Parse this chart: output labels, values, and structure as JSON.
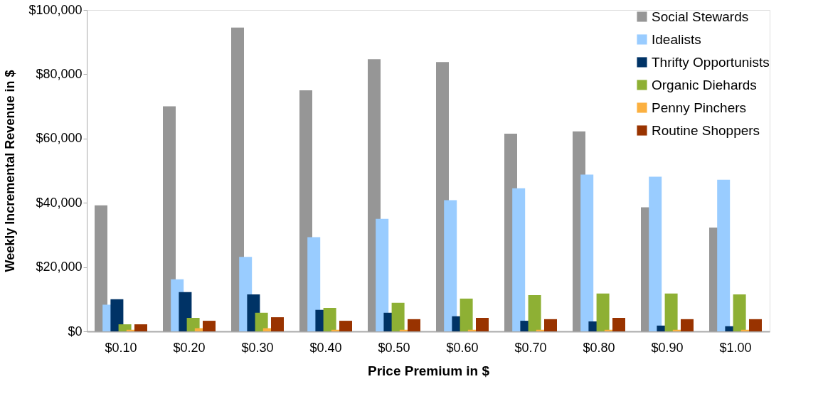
{
  "chart_data": {
    "type": "bar",
    "xlabel": "Price Premium in $",
    "ylabel": "Weekly Incremental Revenue in $",
    "categories": [
      "$0.10",
      "$0.20",
      "$0.30",
      "$0.40",
      "$0.50",
      "$0.60",
      "$0.70",
      "$0.80",
      "$0.90",
      "$1.00"
    ],
    "series": [
      {
        "name": "Social Stewards",
        "color": "#969696",
        "values": [
          39200,
          70000,
          94500,
          75000,
          84700,
          83800,
          61500,
          62200,
          38600,
          32300
        ]
      },
      {
        "name": "Idealists",
        "color": "#99ccff",
        "values": [
          8300,
          16200,
          23200,
          29300,
          35000,
          40800,
          44500,
          48800,
          48100,
          47200
        ]
      },
      {
        "name": "Thrifty Opportunists",
        "color": "#003366",
        "values": [
          10000,
          12200,
          11500,
          6700,
          5800,
          4700,
          3300,
          3100,
          1800,
          1600
        ]
      },
      {
        "name": "Organic Diehards",
        "color": "#8eb034",
        "values": [
          2200,
          4200,
          5800,
          7300,
          8900,
          10200,
          11300,
          11800,
          11800,
          11500
        ]
      },
      {
        "name": "Penny Pinchers",
        "color": "#fbb040",
        "values": [
          500,
          1000,
          1000,
          500,
          500,
          500,
          500,
          500,
          500,
          500
        ]
      },
      {
        "name": "Routine Shoppers",
        "color": "#993300",
        "values": [
          2200,
          3300,
          4400,
          3300,
          3800,
          4200,
          3800,
          4200,
          3800,
          3800
        ]
      }
    ],
    "ylim": [
      0,
      100000
    ],
    "yticks": [
      {
        "value": 0,
        "label": "$0"
      },
      {
        "value": 20000,
        "label": "$20,000"
      },
      {
        "value": 40000,
        "label": "$40,000"
      },
      {
        "value": 60000,
        "label": "$60,000"
      },
      {
        "value": 80000,
        "label": "$80,000"
      },
      {
        "value": 100000,
        "label": "$100,000"
      }
    ],
    "grid": false,
    "legend": "top right"
  }
}
